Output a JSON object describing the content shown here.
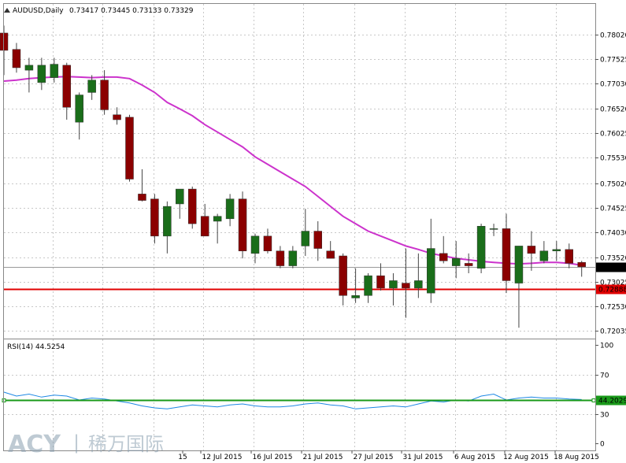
{
  "header": {
    "symbol": "AUDUSD,Daily",
    "ohlc": "0.73417 0.73445 0.73133 0.73329"
  },
  "watermark": {
    "brand": "ACY",
    "separator": "|",
    "chinese": "稀万国际"
  },
  "colors": {
    "bull": "#1a6e1a",
    "bear": "#8b0000",
    "ma": "#cc33cc",
    "support": "#e00000",
    "rsi": "#1e88e5",
    "rsi_level": "#1a9a1a",
    "grid": "#c8c8c8",
    "last_price_bg": "#000000",
    "support_bg": "#e00000",
    "rsi_level_bg": "#1a9a1a"
  },
  "price_axis": {
    "ticks": [
      "0.78020",
      "0.77525",
      "0.77030",
      "0.76520",
      "0.76025",
      "0.75530",
      "0.75020",
      "0.74525",
      "0.74030",
      "0.73520",
      "0.73025",
      "0.72530",
      "0.72035"
    ],
    "last_price_label": "0.73329",
    "support_label": "0.72888"
  },
  "rsi_axis": {
    "title": "RSI(14) 44.5254",
    "ticks": [
      "100",
      "70",
      "30",
      "0"
    ],
    "level_label": "44.2029"
  },
  "x_axis": {
    "labels": [
      "15",
      "12 Jul 2015",
      "16 Jul 2015",
      "21 Jul 2015",
      "27 Jul 2015",
      "31 Jul 2015",
      "6 Aug 2015",
      "12 Aug 2015",
      "18 Aug 2015"
    ]
  },
  "chart_data": {
    "type": "candlestick",
    "title": "AUDUSD,Daily",
    "ylim": [
      0.7196,
      0.7824
    ],
    "support_level": 0.72888,
    "last_price": 0.73329,
    "candles": [
      {
        "o": 0.7805,
        "h": 0.782,
        "l": 0.772,
        "c": 0.777
      },
      {
        "o": 0.7772,
        "h": 0.7785,
        "l": 0.7725,
        "c": 0.7735
      },
      {
        "o": 0.773,
        "h": 0.7755,
        "l": 0.7685,
        "c": 0.774
      },
      {
        "o": 0.7705,
        "h": 0.7755,
        "l": 0.769,
        "c": 0.774
      },
      {
        "o": 0.7715,
        "h": 0.7755,
        "l": 0.7705,
        "c": 0.7742
      },
      {
        "o": 0.774,
        "h": 0.7745,
        "l": 0.763,
        "c": 0.7655
      },
      {
        "o": 0.7625,
        "h": 0.7685,
        "l": 0.759,
        "c": 0.768
      },
      {
        "o": 0.7685,
        "h": 0.772,
        "l": 0.767,
        "c": 0.771
      },
      {
        "o": 0.771,
        "h": 0.773,
        "l": 0.764,
        "c": 0.765
      },
      {
        "o": 0.764,
        "h": 0.7655,
        "l": 0.762,
        "c": 0.763
      },
      {
        "o": 0.7635,
        "h": 0.764,
        "l": 0.7505,
        "c": 0.751
      },
      {
        "o": 0.748,
        "h": 0.753,
        "l": 0.7465,
        "c": 0.7467
      },
      {
        "o": 0.747,
        "h": 0.748,
        "l": 0.738,
        "c": 0.7395
      },
      {
        "o": 0.7395,
        "h": 0.7465,
        "l": 0.736,
        "c": 0.7455
      },
      {
        "o": 0.746,
        "h": 0.749,
        "l": 0.743,
        "c": 0.749
      },
      {
        "o": 0.749,
        "h": 0.7495,
        "l": 0.741,
        "c": 0.742
      },
      {
        "o": 0.7435,
        "h": 0.746,
        "l": 0.7395,
        "c": 0.7395
      },
      {
        "o": 0.7425,
        "h": 0.744,
        "l": 0.738,
        "c": 0.7435
      },
      {
        "o": 0.743,
        "h": 0.748,
        "l": 0.7415,
        "c": 0.747
      },
      {
        "o": 0.747,
        "h": 0.7485,
        "l": 0.735,
        "c": 0.7365
      },
      {
        "o": 0.736,
        "h": 0.74,
        "l": 0.734,
        "c": 0.7395
      },
      {
        "o": 0.7395,
        "h": 0.741,
        "l": 0.736,
        "c": 0.7365
      },
      {
        "o": 0.7365,
        "h": 0.7375,
        "l": 0.733,
        "c": 0.7335
      },
      {
        "o": 0.7335,
        "h": 0.7375,
        "l": 0.733,
        "c": 0.7365
      },
      {
        "o": 0.7375,
        "h": 0.745,
        "l": 0.7355,
        "c": 0.7405
      },
      {
        "o": 0.7405,
        "h": 0.7425,
        "l": 0.7345,
        "c": 0.737
      },
      {
        "o": 0.7365,
        "h": 0.7385,
        "l": 0.735,
        "c": 0.735
      },
      {
        "o": 0.7355,
        "h": 0.736,
        "l": 0.7255,
        "c": 0.7275
      },
      {
        "o": 0.727,
        "h": 0.733,
        "l": 0.726,
        "c": 0.7275
      },
      {
        "o": 0.7275,
        "h": 0.732,
        "l": 0.726,
        "c": 0.7315
      },
      {
        "o": 0.7315,
        "h": 0.734,
        "l": 0.7285,
        "c": 0.729
      },
      {
        "o": 0.729,
        "h": 0.732,
        "l": 0.7255,
        "c": 0.7305
      },
      {
        "o": 0.73,
        "h": 0.737,
        "l": 0.723,
        "c": 0.729
      },
      {
        "o": 0.729,
        "h": 0.736,
        "l": 0.727,
        "c": 0.7305
      },
      {
        "o": 0.728,
        "h": 0.743,
        "l": 0.726,
        "c": 0.737
      },
      {
        "o": 0.736,
        "h": 0.7395,
        "l": 0.734,
        "c": 0.7345
      },
      {
        "o": 0.7335,
        "h": 0.7385,
        "l": 0.731,
        "c": 0.735
      },
      {
        "o": 0.734,
        "h": 0.736,
        "l": 0.732,
        "c": 0.7335
      },
      {
        "o": 0.733,
        "h": 0.742,
        "l": 0.732,
        "c": 0.7415
      },
      {
        "o": 0.741,
        "h": 0.742,
        "l": 0.7395,
        "c": 0.741
      },
      {
        "o": 0.741,
        "h": 0.744,
        "l": 0.728,
        "c": 0.7305
      },
      {
        "o": 0.73,
        "h": 0.7375,
        "l": 0.721,
        "c": 0.7375
      },
      {
        "o": 0.7375,
        "h": 0.7405,
        "l": 0.7325,
        "c": 0.736
      },
      {
        "o": 0.7345,
        "h": 0.7385,
        "l": 0.734,
        "c": 0.7365
      },
      {
        "o": 0.7365,
        "h": 0.7385,
        "l": 0.7345,
        "c": 0.7368
      },
      {
        "o": 0.7368,
        "h": 0.738,
        "l": 0.733,
        "c": 0.734
      },
      {
        "o": 0.7342,
        "h": 0.7345,
        "l": 0.7313,
        "c": 0.7333
      }
    ],
    "ma": [
      0.7708,
      0.771,
      0.7713,
      0.7715,
      0.7716,
      0.7717,
      0.7716,
      0.7715,
      0.7716,
      0.7716,
      0.7713,
      0.77,
      0.7685,
      0.7665,
      0.7652,
      0.7638,
      0.762,
      0.7605,
      0.759,
      0.7575,
      0.7555,
      0.754,
      0.7525,
      0.751,
      0.7495,
      0.7475,
      0.7455,
      0.7435,
      0.742,
      0.7405,
      0.7395,
      0.7385,
      0.7375,
      0.7368,
      0.736,
      0.7355,
      0.735,
      0.7347,
      0.7344,
      0.7342,
      0.734,
      0.7339,
      0.734,
      0.7342,
      0.7342,
      0.734,
      0.7336
    ],
    "rsi": [
      52,
      48,
      50,
      47,
      49,
      48,
      44,
      46,
      45,
      43,
      41,
      38,
      36,
      35,
      37,
      39,
      38,
      37,
      39,
      40,
      38,
      37,
      37,
      38,
      40,
      41,
      39,
      38,
      35,
      36,
      37,
      38,
      37,
      40,
      43,
      42,
      44,
      43,
      48,
      50,
      44,
      46,
      47,
      46,
      46,
      45,
      44.5
    ]
  }
}
